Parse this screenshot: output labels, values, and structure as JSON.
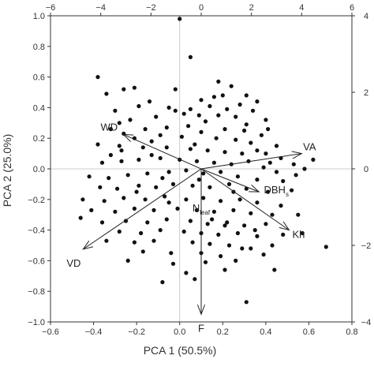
{
  "chart_data": {
    "type": "scatter",
    "title": "",
    "xlabel": "PCA 1 (50.5%)",
    "ylabel": "PCA 2 (25.0%)",
    "xlim": [
      -0.6,
      0.8
    ],
    "ylim": [
      -1.0,
      1.0
    ],
    "x_ticks": [
      -0.6,
      -0.4,
      -0.2,
      0.0,
      0.2,
      0.4,
      0.6,
      0.8
    ],
    "x_tick_labels": [
      "−0.6",
      "−0.4",
      "−0.2",
      "0.0",
      "0.2",
      "0.4",
      "0.6",
      "0.8"
    ],
    "y_ticks": [
      -1.0,
      -0.8,
      -0.6,
      -0.4,
      -0.2,
      0.0,
      0.2,
      0.4,
      0.6,
      0.8,
      1.0
    ],
    "y_tick_labels": [
      "−1.0",
      "−0.8",
      "−0.6",
      "−0.4",
      "−0.2",
      "0.0",
      "0.2",
      "0.4",
      "0.6",
      "0.8",
      "1.0"
    ],
    "top_xlim": [
      -6,
      6
    ],
    "top_ticks": [
      -6,
      -4,
      -2,
      0,
      2,
      4,
      6
    ],
    "top_tick_labels": [
      "−6",
      "−4",
      "−2",
      "0",
      "2",
      "4",
      "6"
    ],
    "right_ylim": [
      -4,
      4
    ],
    "right_ticks": [
      -4,
      -2,
      0,
      2,
      4
    ],
    "right_tick_labels": [
      "−4",
      "−2",
      "0",
      "2",
      "4"
    ],
    "loadings": [
      {
        "label": "WD",
        "x": -3.1,
        "y": 0.9
      },
      {
        "label": "VA",
        "x": 4.0,
        "y": 0.4
      },
      {
        "label": "DBH",
        "sub": "s",
        "x": 2.3,
        "y": -0.6
      },
      {
        "label": "Kh",
        "x": 3.5,
        "y": -1.6
      },
      {
        "label": "VD",
        "x": -4.7,
        "y": -2.1
      },
      {
        "label": "F",
        "x": 0.0,
        "y": -3.8
      },
      {
        "label": "N",
        "sub": "leaf",
        "x": 0.0,
        "y": 0.0
      }
    ],
    "points": [
      [
        0.0,
        0.98
      ],
      [
        0.05,
        0.73
      ],
      [
        -0.38,
        0.6
      ],
      [
        -0.21,
        0.53
      ],
      [
        -0.26,
        0.52
      ],
      [
        -0.34,
        0.49
      ],
      [
        0.18,
        0.57
      ],
      [
        0.24,
        0.54
      ],
      [
        0.31,
        0.48
      ],
      [
        0.1,
        0.45
      ],
      [
        0.16,
        0.47
      ],
      [
        0.36,
        0.44
      ],
      [
        -0.14,
        0.44
      ],
      [
        -0.19,
        0.41
      ],
      [
        -0.05,
        0.4
      ],
      [
        -0.02,
        0.38
      ],
      [
        0.05,
        0.39
      ],
      [
        0.14,
        0.41
      ],
      [
        0.22,
        0.39
      ],
      [
        0.28,
        0.42
      ],
      [
        0.34,
        0.38
      ],
      [
        0.09,
        0.35
      ],
      [
        -0.11,
        0.34
      ],
      [
        0.18,
        0.35
      ],
      [
        0.26,
        0.34
      ],
      [
        0.4,
        0.32
      ],
      [
        0.41,
        0.26
      ],
      [
        -0.23,
        0.32
      ],
      [
        -0.28,
        0.3
      ],
      [
        0.12,
        0.31
      ],
      [
        -0.32,
        0.26
      ],
      [
        -0.26,
        0.23
      ],
      [
        -0.16,
        0.26
      ],
      [
        -0.06,
        0.27
      ],
      [
        0.04,
        0.28
      ],
      [
        0.31,
        0.29
      ],
      [
        0.21,
        0.26
      ],
      [
        0.38,
        0.22
      ],
      [
        0.1,
        0.24
      ],
      [
        -0.21,
        0.2
      ],
      [
        -0.09,
        0.22
      ],
      [
        0.01,
        0.21
      ],
      [
        0.17,
        0.2
      ],
      [
        0.26,
        0.19
      ],
      [
        0.33,
        0.17
      ],
      [
        0.45,
        0.15
      ],
      [
        -0.38,
        0.16
      ],
      [
        -0.28,
        0.15
      ],
      [
        -0.17,
        0.14
      ],
      [
        -0.06,
        0.14
      ],
      [
        0.05,
        0.13
      ],
      [
        0.13,
        0.12
      ],
      [
        0.21,
        0.11
      ],
      [
        0.29,
        0.1
      ],
      [
        0.4,
        0.1
      ],
      [
        0.47,
        0.07
      ],
      [
        0.53,
        0.03
      ],
      [
        0.62,
        0.06
      ],
      [
        -0.36,
        0.04
      ],
      [
        -0.27,
        0.05
      ],
      [
        -0.19,
        0.06
      ],
      [
        -0.09,
        0.07
      ],
      [
        0.0,
        0.06
      ],
      [
        0.08,
        0.05
      ],
      [
        0.16,
        0.04
      ],
      [
        0.24,
        0.03
      ],
      [
        0.32,
        0.05
      ],
      [
        0.39,
        0.01
      ],
      [
        0.45,
        -0.02
      ],
      [
        0.54,
        -0.04
      ],
      [
        -0.42,
        -0.05
      ],
      [
        -0.33,
        -0.06
      ],
      [
        -0.24,
        -0.04
      ],
      [
        -0.15,
        -0.03
      ],
      [
        -0.05,
        -0.02
      ],
      [
        0.03,
        -0.01
      ],
      [
        0.11,
        -0.03
      ],
      [
        0.19,
        -0.02
      ],
      [
        0.27,
        -0.05
      ],
      [
        0.36,
        -0.07
      ],
      [
        0.48,
        -0.08
      ],
      [
        -0.37,
        -0.12
      ],
      [
        -0.29,
        -0.13
      ],
      [
        -0.19,
        -0.11
      ],
      [
        -0.11,
        -0.12
      ],
      [
        -0.03,
        -0.1
      ],
      [
        0.06,
        -0.11
      ],
      [
        0.14,
        -0.12
      ],
      [
        0.23,
        -0.1
      ],
      [
        0.31,
        -0.13
      ],
      [
        0.41,
        -0.15
      ],
      [
        0.52,
        -0.14
      ],
      [
        -0.45,
        -0.2
      ],
      [
        -0.35,
        -0.21
      ],
      [
        -0.26,
        -0.19
      ],
      [
        -0.16,
        -0.2
      ],
      [
        -0.07,
        -0.18
      ],
      [
        0.03,
        -0.2
      ],
      [
        0.11,
        -0.19
      ],
      [
        0.19,
        -0.21
      ],
      [
        0.28,
        -0.2
      ],
      [
        0.36,
        -0.22
      ],
      [
        0.47,
        -0.24
      ],
      [
        -0.41,
        -0.27
      ],
      [
        -0.3,
        -0.28
      ],
      [
        -0.21,
        -0.26
      ],
      [
        -0.12,
        -0.27
      ],
      [
        -0.01,
        -0.26
      ],
      [
        0.08,
        -0.27
      ],
      [
        0.16,
        -0.28
      ],
      [
        0.25,
        -0.27
      ],
      [
        0.33,
        -0.29
      ],
      [
        0.43,
        -0.3
      ],
      [
        0.55,
        -0.3
      ],
      [
        -0.36,
        -0.35
      ],
      [
        -0.25,
        -0.34
      ],
      [
        -0.15,
        -0.35
      ],
      [
        -0.06,
        -0.33
      ],
      [
        0.05,
        -0.34
      ],
      [
        0.13,
        -0.36
      ],
      [
        0.22,
        -0.35
      ],
      [
        0.3,
        -0.37
      ],
      [
        0.4,
        -0.36
      ],
      [
        -0.28,
        -0.41
      ],
      [
        -0.18,
        -0.42
      ],
      [
        -0.09,
        -0.4
      ],
      [
        0.02,
        -0.41
      ],
      [
        0.1,
        -0.42
      ],
      [
        0.18,
        -0.43
      ],
      [
        0.27,
        -0.42
      ],
      [
        0.36,
        -0.44
      ],
      [
        0.48,
        -0.43
      ],
      [
        0.57,
        -0.42
      ],
      [
        -0.34,
        -0.47
      ],
      [
        -0.21,
        -0.48
      ],
      [
        -0.12,
        -0.47
      ],
      [
        0.06,
        -0.48
      ],
      [
        0.14,
        -0.49
      ],
      [
        0.23,
        -0.5
      ],
      [
        0.33,
        -0.52
      ],
      [
        0.43,
        -0.5
      ],
      [
        0.68,
        -0.51
      ],
      [
        -0.17,
        -0.54
      ],
      [
        -0.04,
        -0.55
      ],
      [
        0.1,
        -0.55
      ],
      [
        0.19,
        -0.57
      ],
      [
        0.29,
        -0.52
      ],
      [
        0.39,
        -0.56
      ],
      [
        -0.03,
        -0.62
      ],
      [
        0.12,
        -0.61
      ],
      [
        0.03,
        -0.68
      ],
      [
        0.21,
        -0.66
      ],
      [
        0.44,
        -0.66
      ],
      [
        -0.08,
        -0.74
      ],
      [
        0.07,
        -0.72
      ],
      [
        0.31,
        -0.87
      ],
      [
        -0.27,
        0.12
      ],
      [
        -0.13,
        0.18
      ],
      [
        0.07,
        0.16
      ],
      [
        0.36,
        0.12
      ],
      [
        -0.08,
        -0.06
      ],
      [
        0.09,
        -0.07
      ],
      [
        0.25,
        -0.15
      ],
      [
        -0.2,
        -0.15
      ],
      [
        0.15,
        -0.33
      ],
      [
        -0.3,
        0.38
      ],
      [
        0.2,
        0.48
      ],
      [
        -0.02,
        0.52
      ],
      [
        0.3,
        0.25
      ],
      [
        0.02,
        0.36
      ],
      [
        -0.13,
        0.09
      ],
      [
        0.42,
        0.04
      ],
      [
        0.58,
        0.0
      ],
      [
        -0.46,
        -0.32
      ],
      [
        -0.24,
        -0.6
      ],
      [
        0.26,
        -0.6
      ],
      [
        -0.05,
        -0.22
      ],
      [
        0.21,
        -0.37
      ],
      [
        0.35,
        -0.4
      ],
      [
        -0.32,
        0.09
      ]
    ]
  }
}
